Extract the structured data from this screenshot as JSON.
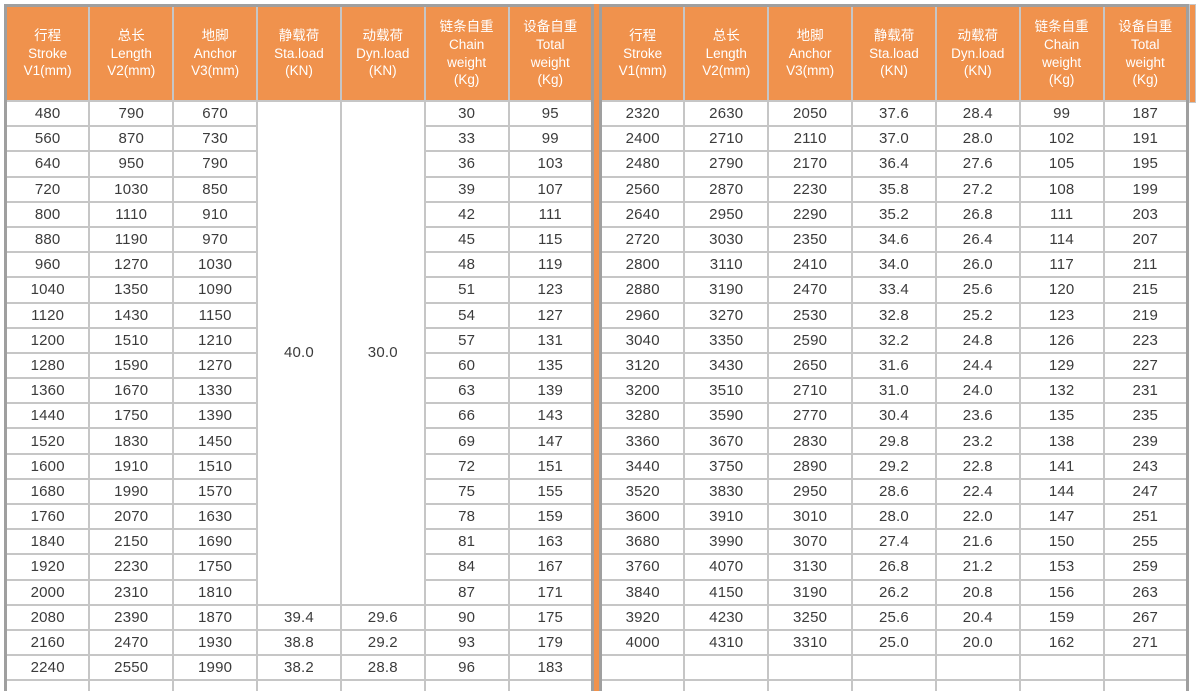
{
  "colors": {
    "header_bg": "#F0924D",
    "divider": "#F0924D",
    "grid_line": "#c6c6c6",
    "outer_border": "#9f9f9f",
    "text": "#3b3b3b",
    "header_text": "#ffffff"
  },
  "table": {
    "column_headers": [
      "行程\nStroke\nV1(mm)",
      "总长\nLength\nV2(mm)",
      "地脚\nAnchor\nV3(mm)",
      "静载荷\nSta.load\n(KN)",
      "动载荷\nDyn.load\n(KN)",
      "链条自重\nChain\nweight\n(Kg)",
      "设备自重\nTotal\nweight\n(Kg)"
    ],
    "left": {
      "merged_sta_load": {
        "value": "40.0",
        "row_span": 20
      },
      "merged_dyn_load": {
        "value": "30.0",
        "row_span": 20
      },
      "rows": [
        [
          "480",
          "790",
          "670",
          "",
          "",
          "30",
          "95"
        ],
        [
          "560",
          "870",
          "730",
          "",
          "",
          "33",
          "99"
        ],
        [
          "640",
          "950",
          "790",
          "",
          "",
          "36",
          "103"
        ],
        [
          "720",
          "1030",
          "850",
          "",
          "",
          "39",
          "107"
        ],
        [
          "800",
          "1110",
          "910",
          "",
          "",
          "42",
          "111"
        ],
        [
          "880",
          "1190",
          "970",
          "",
          "",
          "45",
          "115"
        ],
        [
          "960",
          "1270",
          "1030",
          "",
          "",
          "48",
          "119"
        ],
        [
          "1040",
          "1350",
          "1090",
          "",
          "",
          "51",
          "123"
        ],
        [
          "1120",
          "1430",
          "1150",
          "",
          "",
          "54",
          "127"
        ],
        [
          "1200",
          "1510",
          "1210",
          "",
          "",
          "57",
          "131"
        ],
        [
          "1280",
          "1590",
          "1270",
          "",
          "",
          "60",
          "135"
        ],
        [
          "1360",
          "1670",
          "1330",
          "",
          "",
          "63",
          "139"
        ],
        [
          "1440",
          "1750",
          "1390",
          "",
          "",
          "66",
          "143"
        ],
        [
          "1520",
          "1830",
          "1450",
          "",
          "",
          "69",
          "147"
        ],
        [
          "1600",
          "1910",
          "1510",
          "",
          "",
          "72",
          "151"
        ],
        [
          "1680",
          "1990",
          "1570",
          "",
          "",
          "75",
          "155"
        ],
        [
          "1760",
          "2070",
          "1630",
          "",
          "",
          "78",
          "159"
        ],
        [
          "1840",
          "2150",
          "1690",
          "",
          "",
          "81",
          "163"
        ],
        [
          "1920",
          "2230",
          "1750",
          "",
          "",
          "84",
          "167"
        ],
        [
          "2000",
          "2310",
          "1810",
          "",
          "",
          "87",
          "171"
        ],
        [
          "2080",
          "2390",
          "1870",
          "39.4",
          "29.6",
          "90",
          "175"
        ],
        [
          "2160",
          "2470",
          "1930",
          "38.8",
          "29.2",
          "93",
          "179"
        ],
        [
          "2240",
          "2550",
          "1990",
          "38.2",
          "28.8",
          "96",
          "183"
        ]
      ]
    },
    "right": {
      "rows": [
        [
          "2320",
          "2630",
          "2050",
          "37.6",
          "28.4",
          "99",
          "187"
        ],
        [
          "2400",
          "2710",
          "2110",
          "37.0",
          "28.0",
          "102",
          "191"
        ],
        [
          "2480",
          "2790",
          "2170",
          "36.4",
          "27.6",
          "105",
          "195"
        ],
        [
          "2560",
          "2870",
          "2230",
          "35.8",
          "27.2",
          "108",
          "199"
        ],
        [
          "2640",
          "2950",
          "2290",
          "35.2",
          "26.8",
          "111",
          "203"
        ],
        [
          "2720",
          "3030",
          "2350",
          "34.6",
          "26.4",
          "114",
          "207"
        ],
        [
          "2800",
          "3110",
          "2410",
          "34.0",
          "26.0",
          "117",
          "211"
        ],
        [
          "2880",
          "3190",
          "2470",
          "33.4",
          "25.6",
          "120",
          "215"
        ],
        [
          "2960",
          "3270",
          "2530",
          "32.8",
          "25.2",
          "123",
          "219"
        ],
        [
          "3040",
          "3350",
          "2590",
          "32.2",
          "24.8",
          "126",
          "223"
        ],
        [
          "3120",
          "3430",
          "2650",
          "31.6",
          "24.4",
          "129",
          "227"
        ],
        [
          "3200",
          "3510",
          "2710",
          "31.0",
          "24.0",
          "132",
          "231"
        ],
        [
          "3280",
          "3590",
          "2770",
          "30.4",
          "23.6",
          "135",
          "235"
        ],
        [
          "3360",
          "3670",
          "2830",
          "29.8",
          "23.2",
          "138",
          "239"
        ],
        [
          "3440",
          "3750",
          "2890",
          "29.2",
          "22.8",
          "141",
          "243"
        ],
        [
          "3520",
          "3830",
          "2950",
          "28.6",
          "22.4",
          "144",
          "247"
        ],
        [
          "3600",
          "3910",
          "3010",
          "28.0",
          "22.0",
          "147",
          "251"
        ],
        [
          "3680",
          "3990",
          "3070",
          "27.4",
          "21.6",
          "150",
          "255"
        ],
        [
          "3760",
          "4070",
          "3130",
          "26.8",
          "21.2",
          "153",
          "259"
        ],
        [
          "3840",
          "4150",
          "3190",
          "26.2",
          "20.8",
          "156",
          "263"
        ],
        [
          "3920",
          "4230",
          "3250",
          "25.6",
          "20.4",
          "159",
          "267"
        ],
        [
          "4000",
          "4310",
          "3310",
          "25.0",
          "20.0",
          "162",
          "271"
        ],
        [
          "",
          "",
          "",
          "",
          "",
          "",
          ""
        ]
      ]
    }
  }
}
